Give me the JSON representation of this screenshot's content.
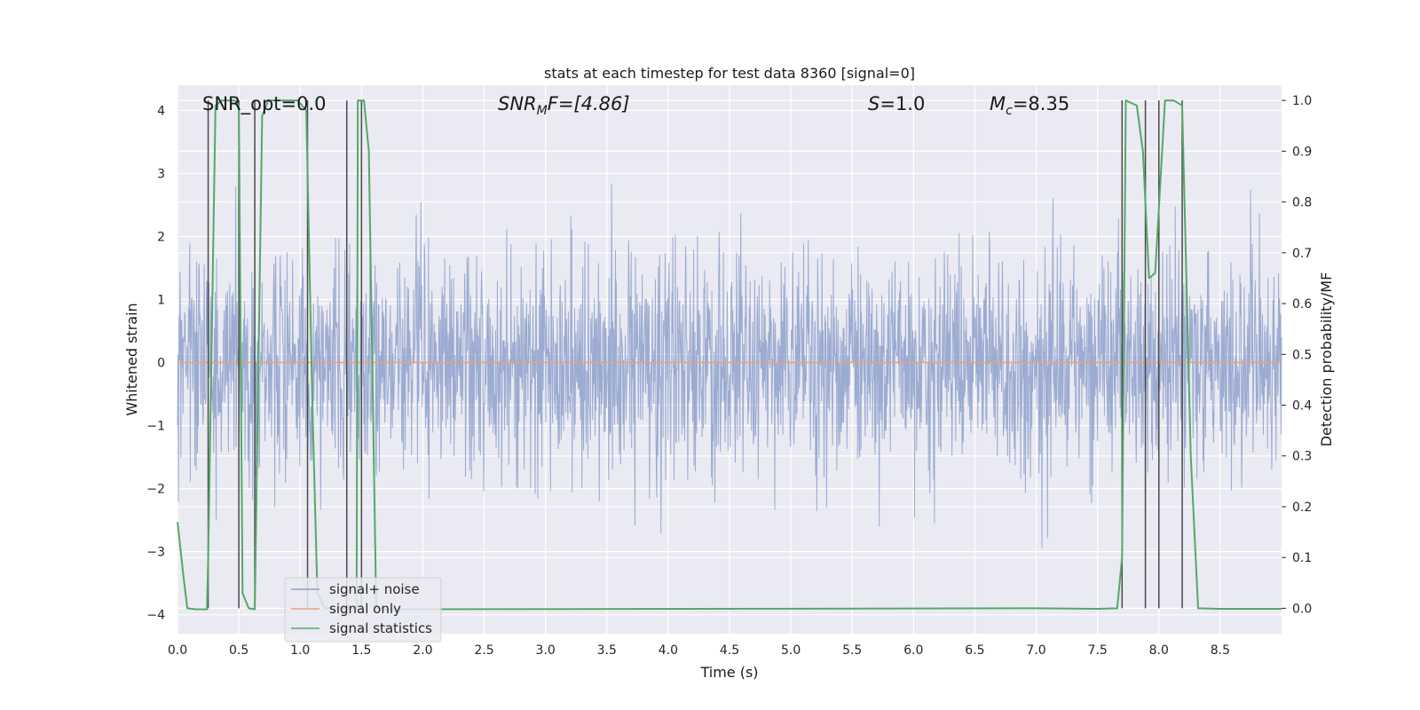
{
  "chart_data": {
    "type": "line",
    "title": "stats at each timestep for test data 8360 [signal=0]",
    "xlabel": "Time (s)",
    "ylabel": "Whitened strain",
    "y2label": "Detection probability/MF",
    "xlim": [
      0,
      9.0
    ],
    "ylim": [
      -4.3,
      4.4
    ],
    "y2lim": [
      -0.05,
      1.03
    ],
    "x_ticks": [
      "0.0",
      "0.5",
      "1.0",
      "1.5",
      "2.0",
      "2.5",
      "3.0",
      "3.5",
      "4.0",
      "4.5",
      "5.0",
      "5.5",
      "6.0",
      "6.5",
      "7.0",
      "7.5",
      "8.0",
      "8.5"
    ],
    "y_ticks": [
      "4",
      "3",
      "2",
      "1",
      "0",
      "−1",
      "−2",
      "−3",
      "−4"
    ],
    "y2_ticks": [
      "1.0",
      "0.9",
      "0.8",
      "0.7",
      "0.6",
      "0.5",
      "0.4",
      "0.3",
      "0.2",
      "0.1",
      "0.0"
    ],
    "grid": true,
    "legend_placement": "lower-left",
    "annotations": {
      "snr_opt": "SNR_opt=0.0",
      "snr_mf_main": "SNR",
      "snr_mf_sub": "M",
      "snr_mf_tail": "F=[4.86]",
      "s_main": "S",
      "s_tail": "=1.0",
      "mc_main": "M",
      "mc_sub": "c",
      "mc_tail": "=8.35"
    },
    "series": [
      {
        "name": "signal+ noise",
        "color": "#8da0cb",
        "envelope_max_abs": 4.0,
        "typical_abs": 1.5
      },
      {
        "name": "signal only",
        "color": "#e8a27c",
        "constant_value": 0.0
      },
      {
        "name": "signal statistics",
        "color": "#55a868",
        "points": [
          [
            0.0,
            0.17
          ],
          [
            0.05,
            0.06
          ],
          [
            0.08,
            0.0
          ],
          [
            0.15,
            -0.002
          ],
          [
            0.24,
            -0.002
          ],
          [
            0.25,
            0.1
          ],
          [
            0.31,
            0.99
          ],
          [
            0.36,
            1.0
          ],
          [
            0.47,
            1.0
          ],
          [
            0.5,
            0.99
          ],
          [
            0.53,
            0.03
          ],
          [
            0.58,
            0.0
          ],
          [
            0.63,
            -0.002
          ],
          [
            0.69,
            0.97
          ],
          [
            0.74,
            1.0
          ],
          [
            0.98,
            1.0
          ],
          [
            1.05,
            0.98
          ],
          [
            1.1,
            0.4
          ],
          [
            1.14,
            0.03
          ],
          [
            1.2,
            0.0
          ],
          [
            1.46,
            0.0
          ],
          [
            1.47,
            1.0
          ],
          [
            1.52,
            1.0
          ],
          [
            1.56,
            0.9
          ],
          [
            1.62,
            0.0
          ],
          [
            1.7,
            -0.002
          ],
          [
            7.0,
            0.0
          ],
          [
            7.5,
            -0.001
          ],
          [
            7.66,
            0.0
          ],
          [
            7.7,
            0.1
          ],
          [
            7.73,
            1.0
          ],
          [
            7.82,
            0.99
          ],
          [
            7.87,
            0.9
          ],
          [
            7.92,
            0.65
          ],
          [
            7.97,
            0.66
          ],
          [
            8.05,
            1.0
          ],
          [
            8.12,
            1.0
          ],
          [
            8.19,
            0.99
          ],
          [
            8.26,
            0.3
          ],
          [
            8.32,
            0.0
          ],
          [
            8.5,
            -0.001
          ],
          [
            9.0,
            -0.001
          ]
        ]
      }
    ],
    "detection_markers_x": [
      0.25,
      0.5,
      0.63,
      1.06,
      1.38,
      1.5,
      7.7,
      7.89,
      8.0,
      8.19
    ]
  }
}
